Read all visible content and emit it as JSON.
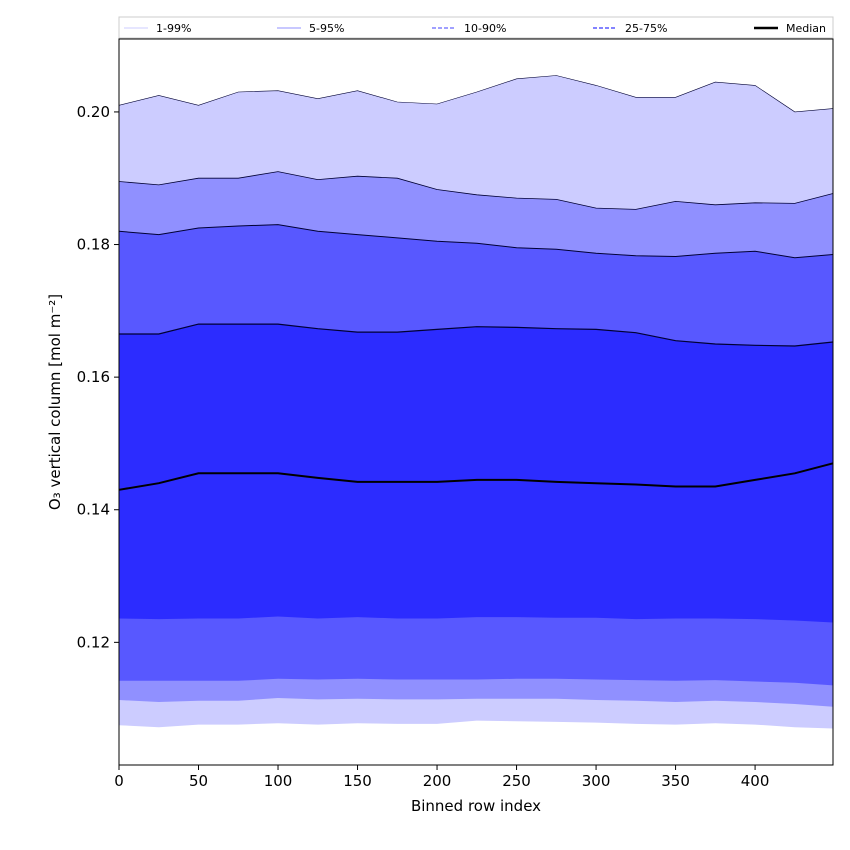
{
  "chart_data": {
    "type": "area",
    "xlabel": "Binned row index",
    "ylabel": "O₃ vertical column [mol m⁻²]",
    "xlim": [
      0,
      449
    ],
    "ylim": [
      0.1015,
      0.211
    ],
    "x_ticks": [
      0,
      50,
      100,
      150,
      200,
      250,
      300,
      350,
      400
    ],
    "y_ticks": [
      0.12,
      0.14,
      0.16,
      0.18,
      0.2
    ],
    "y_tick_labels": [
      "0.12",
      "0.14",
      "0.16",
      "0.18",
      "0.20"
    ],
    "legend_position": "top (above plot)",
    "grid": false,
    "x": [
      0,
      25,
      50,
      75,
      100,
      125,
      150,
      175,
      200,
      225,
      250,
      275,
      300,
      325,
      350,
      375,
      400,
      425,
      449
    ],
    "bands": [
      {
        "name": "1-99%",
        "color": "#ccccff",
        "upper": [
          0.201,
          0.2025,
          0.201,
          0.203,
          0.2032,
          0.202,
          0.2032,
          0.2015,
          0.2012,
          0.203,
          0.205,
          0.2055,
          0.204,
          0.2022,
          0.2022,
          0.2045,
          0.204,
          0.2,
          0.2005
        ],
        "lower": [
          0.1075,
          0.1072,
          0.1076,
          0.1076,
          0.1078,
          0.1076,
          0.1078,
          0.1077,
          0.1077,
          0.1082,
          0.1081,
          0.108,
          0.1079,
          0.1077,
          0.1076,
          0.1078,
          0.1076,
          0.1072,
          0.107
        ]
      },
      {
        "name": "5-95%",
        "color": "#9090ff",
        "upper": [
          0.1895,
          0.189,
          0.19,
          0.19,
          0.191,
          0.1898,
          0.1903,
          0.19,
          0.1883,
          0.1875,
          0.187,
          0.1868,
          0.1855,
          0.1853,
          0.1865,
          0.186,
          0.1863,
          0.1862,
          0.1877
        ],
        "lower": [
          0.1113,
          0.111,
          0.1112,
          0.1112,
          0.1116,
          0.1114,
          0.1115,
          0.1114,
          0.1114,
          0.1115,
          0.1115,
          0.1115,
          0.1113,
          0.1112,
          0.111,
          0.1112,
          0.111,
          0.1107,
          0.1103
        ]
      },
      {
        "name": "10-90%",
        "color": "#5858ff",
        "upper": [
          0.182,
          0.1815,
          0.1825,
          0.1828,
          0.183,
          0.182,
          0.1815,
          0.181,
          0.1805,
          0.1802,
          0.1795,
          0.1793,
          0.1787,
          0.1783,
          0.1782,
          0.1787,
          0.179,
          0.178,
          0.1785
        ],
        "lower": [
          0.1142,
          0.1142,
          0.1142,
          0.1142,
          0.1145,
          0.1144,
          0.1145,
          0.1144,
          0.1144,
          0.1144,
          0.1145,
          0.1145,
          0.1144,
          0.1143,
          0.1142,
          0.1143,
          0.1141,
          0.1139,
          0.1135
        ]
      },
      {
        "name": "25-75%",
        "color": "#2c2cff",
        "upper": [
          0.1665,
          0.1665,
          0.168,
          0.168,
          0.168,
          0.1673,
          0.1668,
          0.1668,
          0.1672,
          0.1676,
          0.1675,
          0.1673,
          0.1672,
          0.1667,
          0.1655,
          0.165,
          0.1648,
          0.1647,
          0.1653
        ],
        "lower": [
          0.1236,
          0.1235,
          0.1236,
          0.1236,
          0.1239,
          0.1236,
          0.1238,
          0.1236,
          0.1236,
          0.1238,
          0.1238,
          0.1237,
          0.1237,
          0.1235,
          0.1236,
          0.1236,
          0.1235,
          0.1233,
          0.123
        ]
      }
    ],
    "median": {
      "name": "Median",
      "color": "#000000",
      "values": [
        0.143,
        0.144,
        0.1455,
        0.1455,
        0.1455,
        0.1448,
        0.1442,
        0.1442,
        0.1442,
        0.1445,
        0.1445,
        0.1442,
        0.144,
        0.1438,
        0.1435,
        0.1435,
        0.1445,
        0.1455,
        0.147
      ]
    },
    "legend": [
      {
        "label": "1-99%",
        "color": "#ccccff",
        "style": "thin"
      },
      {
        "label": "5-95%",
        "color": "#9090ff",
        "style": "thin"
      },
      {
        "label": "10-90%",
        "color": "#8080ff",
        "style": "dashed"
      },
      {
        "label": "25-75%",
        "color": "#5a5aff",
        "style": "dashed"
      },
      {
        "label": "Median",
        "color": "#000000",
        "style": "solid"
      }
    ]
  }
}
